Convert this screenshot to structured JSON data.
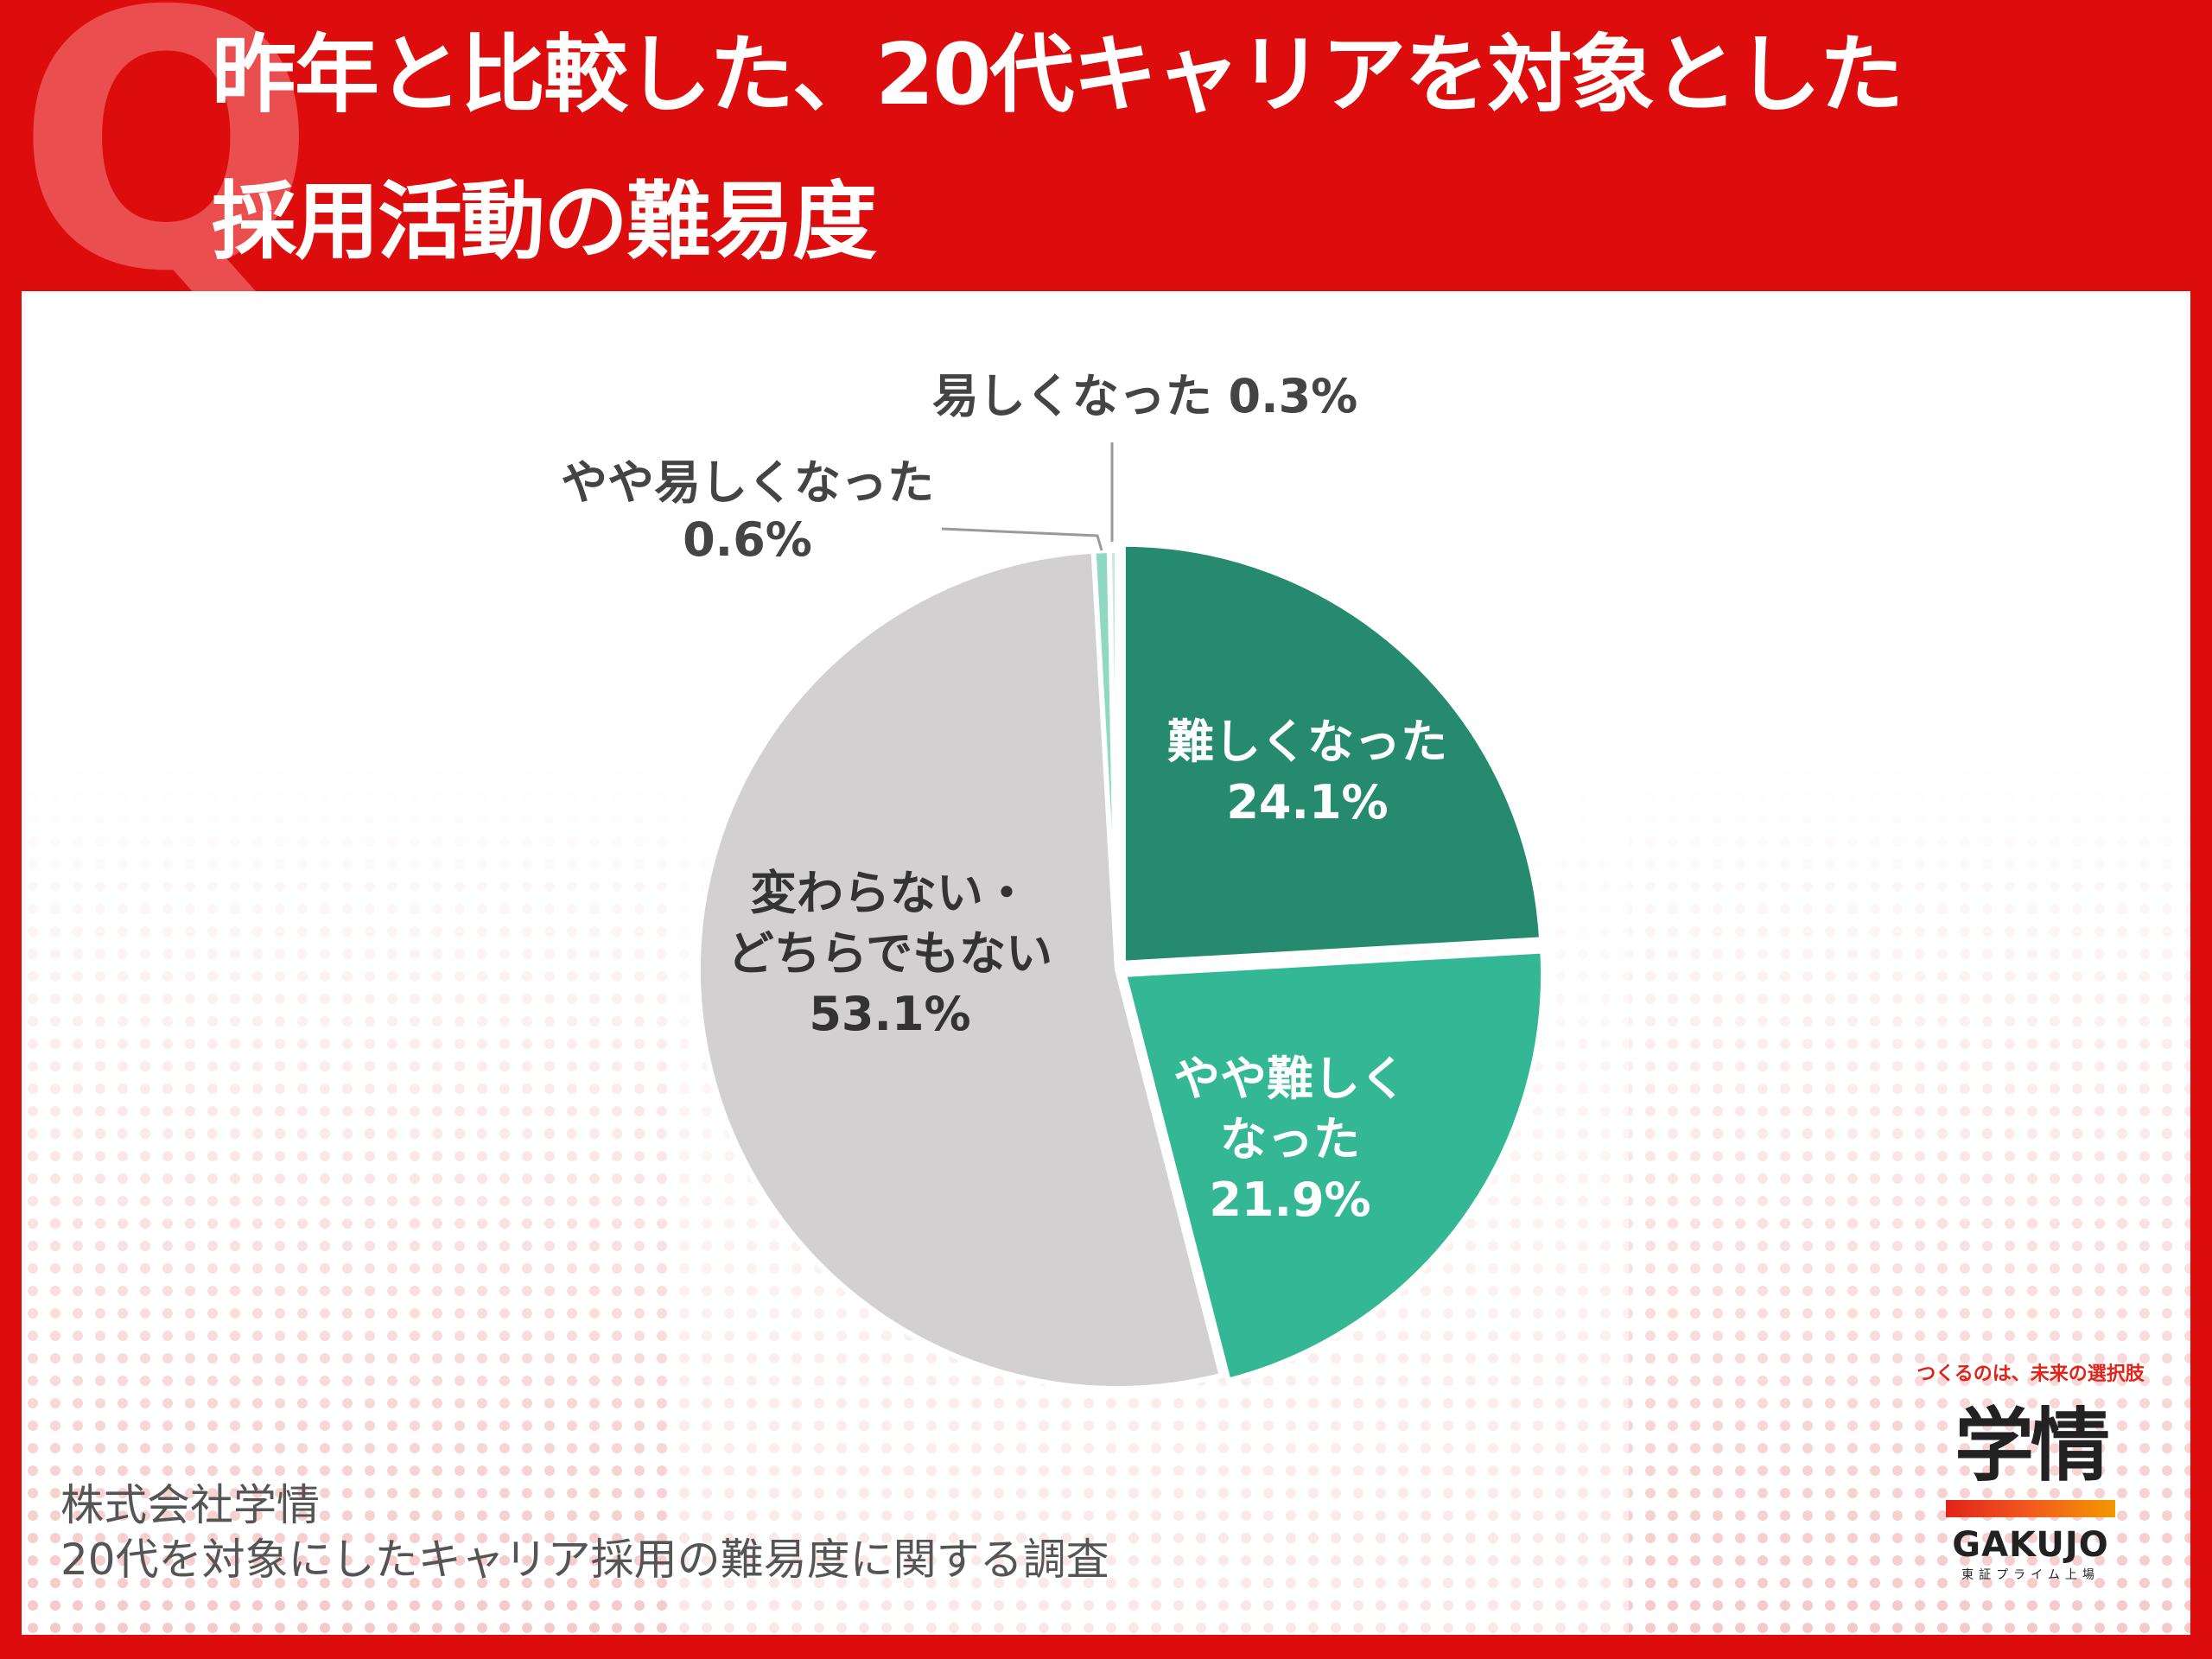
{
  "header": {
    "q_mark": "Q",
    "title_line1": "昨年と比較した、20代キャリアを対象とした",
    "title_line2": "採用活動の難易度"
  },
  "colors": {
    "background_red": "#dd0d0d",
    "panel": "#ffffff",
    "dark_green": "#268a6e",
    "teal": "#34b794",
    "light_green": "#8fd9c2",
    "pale_green": "#c4ecdd",
    "gray": "#d2d0d1",
    "logo_red": "#e2231a"
  },
  "chart_data": {
    "type": "pie",
    "title": "",
    "start_angle_deg": 0,
    "direction": "clockwise",
    "slices": [
      {
        "name_lines": [
          "難しくなった"
        ],
        "label": "難しくなった",
        "value_text": "24.1%",
        "value": 24.1,
        "color": "#268a6e",
        "label_color": "#ffffff"
      },
      {
        "name_lines": [
          "やや難しく",
          "なった"
        ],
        "label": "やや難しくなった",
        "value_text": "21.9%",
        "value": 21.9,
        "color": "#34b794",
        "label_color": "#ffffff"
      },
      {
        "name_lines": [
          "変わらない・",
          "どちらでもない"
        ],
        "label": "変わらない・どちらでもない",
        "value_text": "53.1%",
        "value": 53.1,
        "color": "#d2d0d1",
        "label_color": "#333333"
      },
      {
        "name_lines": [
          "やや易しくなった"
        ],
        "label": "やや易しくなった",
        "value_text": "0.6%",
        "value": 0.6,
        "color": "#8fd9c2",
        "label_color": "#444444",
        "outside": true
      },
      {
        "name_lines": [
          "易しくなった"
        ],
        "label": "易しくなった",
        "value_text": "0.3%",
        "value": 0.3,
        "color": "#c4ecdd",
        "label_color": "#444444",
        "outside": true
      }
    ]
  },
  "source": {
    "line1": "株式会社学情",
    "line2": "20代を対象にしたキャリア採用の難易度に関する調査"
  },
  "logo": {
    "tagline": "つくるのは、未来の選択肢",
    "kanji": "学情",
    "brand": "GAKUJO",
    "sub": "東証プライム上場"
  }
}
